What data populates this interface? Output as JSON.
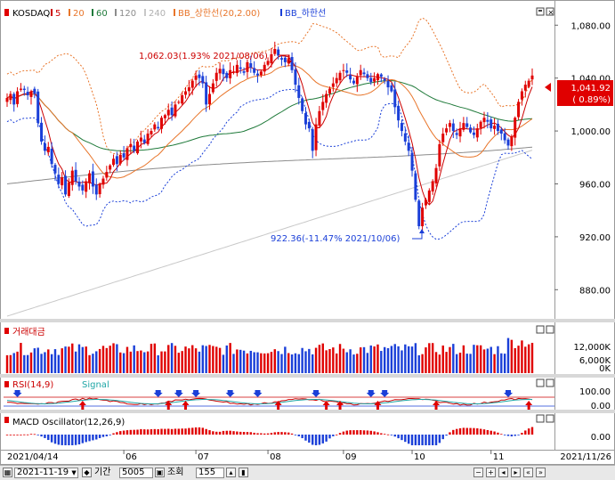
{
  "legend": {
    "name": "KOSDAQ",
    "ma": [
      "5",
      "20",
      "60",
      "120",
      "240"
    ],
    "bb_upper": "BB_상한선(20,2.00)",
    "bb_lower": "BB_하한선"
  },
  "colors": {
    "up": "#e00000",
    "down": "#1a3fd8",
    "ma5": "#cc0000",
    "ma20": "#e8752a",
    "ma60": "#1f7a3a",
    "ma120": "#8c8c8c",
    "ma240": "#c8c8c8",
    "bb": "#e8752a",
    "bb_lower": "#1a3fd8"
  },
  "price_axis": {
    "ticks": [
      "1,080.00",
      "1,040.00",
      "1,000.00",
      "960.00",
      "920.00",
      "880.00"
    ],
    "current": "1,041.92",
    "change": "( 0.89%)"
  },
  "annotations": {
    "high": "1,062.03(1.93% 2021/08/06)",
    "low": "922.36(-11.47% 2021/10/06)"
  },
  "volume": {
    "title": "거래대금",
    "ticks": [
      "12,000K",
      "6,000K",
      "0K"
    ]
  },
  "rsi": {
    "title": "RSI(14,9)",
    "signal": "Signal",
    "ticks": [
      "100.00",
      "0.00"
    ]
  },
  "macd": {
    "title": "MACD Oscillator(12,26,9)",
    "ticks": [
      "0.00"
    ]
  },
  "date_axis": {
    "start": "2021/04/14",
    "end": "2021/11/26",
    "months": [
      "06",
      "07",
      "08",
      "09",
      "10",
      "11"
    ]
  },
  "toolbar": {
    "date": "2021-11-19",
    "period_label": "기간",
    "period": "5005",
    "view_label": "조회",
    "count": "155"
  },
  "chart_data": {
    "type": "candlestick",
    "title": "KOSDAQ",
    "x_range": [
      "2021/04/14",
      "2021/11/26"
    ],
    "ylim": [
      860,
      1095
    ],
    "y_ticks": [
      880,
      920,
      960,
      1000,
      1040,
      1080
    ],
    "last_close": 1041.92,
    "last_change_pct": 0.89,
    "high": {
      "value": 1062.03,
      "date": "2021/08/06",
      "pct": 1.93
    },
    "low": {
      "value": 922.36,
      "date": "2021/10/06",
      "pct": -11.47
    },
    "closes": [
      1025.0,
      1028.0,
      1020.0,
      1030.0,
      1032.0,
      1031.0,
      1027.0,
      1030.0,
      1028.0,
      1006.0,
      992.0,
      985.0,
      988.0,
      975.0,
      968.0,
      960.0,
      965.0,
      952.0,
      961.0,
      970.0,
      962.0,
      958.0,
      955.0,
      962.0,
      968.0,
      958.0,
      952.0,
      960.0,
      964.0,
      969.0,
      974.0,
      979.0,
      975.0,
      982.0,
      980.0,
      987.0,
      990.0,
      985.0,
      992.0,
      995.0,
      991.0,
      998.0,
      1000.0,
      1005.0,
      1002.0,
      1010.0,
      1012.0,
      1016.0,
      1012.0,
      1020.0,
      1022.0,
      1027.0,
      1030.0,
      1033.0,
      1038.0,
      1042.0,
      1040.0,
      1036.0,
      1020.0,
      1028.0,
      1036.0,
      1044.0,
      1047.0,
      1043.0,
      1040.0,
      1046.0,
      1045.0,
      1050.0,
      1047.0,
      1044.0,
      1052.0,
      1048.0,
      1044.0,
      1042.0,
      1045.0,
      1050.0,
      1053.0,
      1058.0,
      1062.0,
      1057.0,
      1054.0,
      1052.0,
      1055.0,
      1046.0,
      1035.0,
      1025.0,
      1015.0,
      1005.0,
      1002.0,
      985.0,
      1005.0,
      1015.0,
      1022.0,
      1028.0,
      1032.0,
      1036.0,
      1040.0,
      1044.0,
      1046.0,
      1044.0,
      1039.0,
      1036.0,
      1041.0,
      1046.0,
      1043.0,
      1040.0,
      1037.0,
      1040.0,
      1043.0,
      1041.0,
      1038.0,
      1033.0,
      1030.0,
      1018.0,
      1008.0,
      1000.0,
      992.0,
      985.0,
      970.0,
      948.0,
      928.0,
      942.0,
      948.0,
      955.0,
      962.0,
      972.0,
      990.0,
      998.0,
      1002.0,
      1006.0,
      1000.0,
      997.0,
      1002.0,
      1006.0,
      1003.0,
      999.0,
      997.0,
      1002.0,
      1007.0,
      1010.0,
      1007.0,
      1002.0,
      1004.0,
      1000.0,
      998.0,
      993.0,
      989.0,
      996.0,
      1010.0,
      1022.0,
      1030.0,
      1035.0,
      1038.0,
      1041.92
    ]
  }
}
